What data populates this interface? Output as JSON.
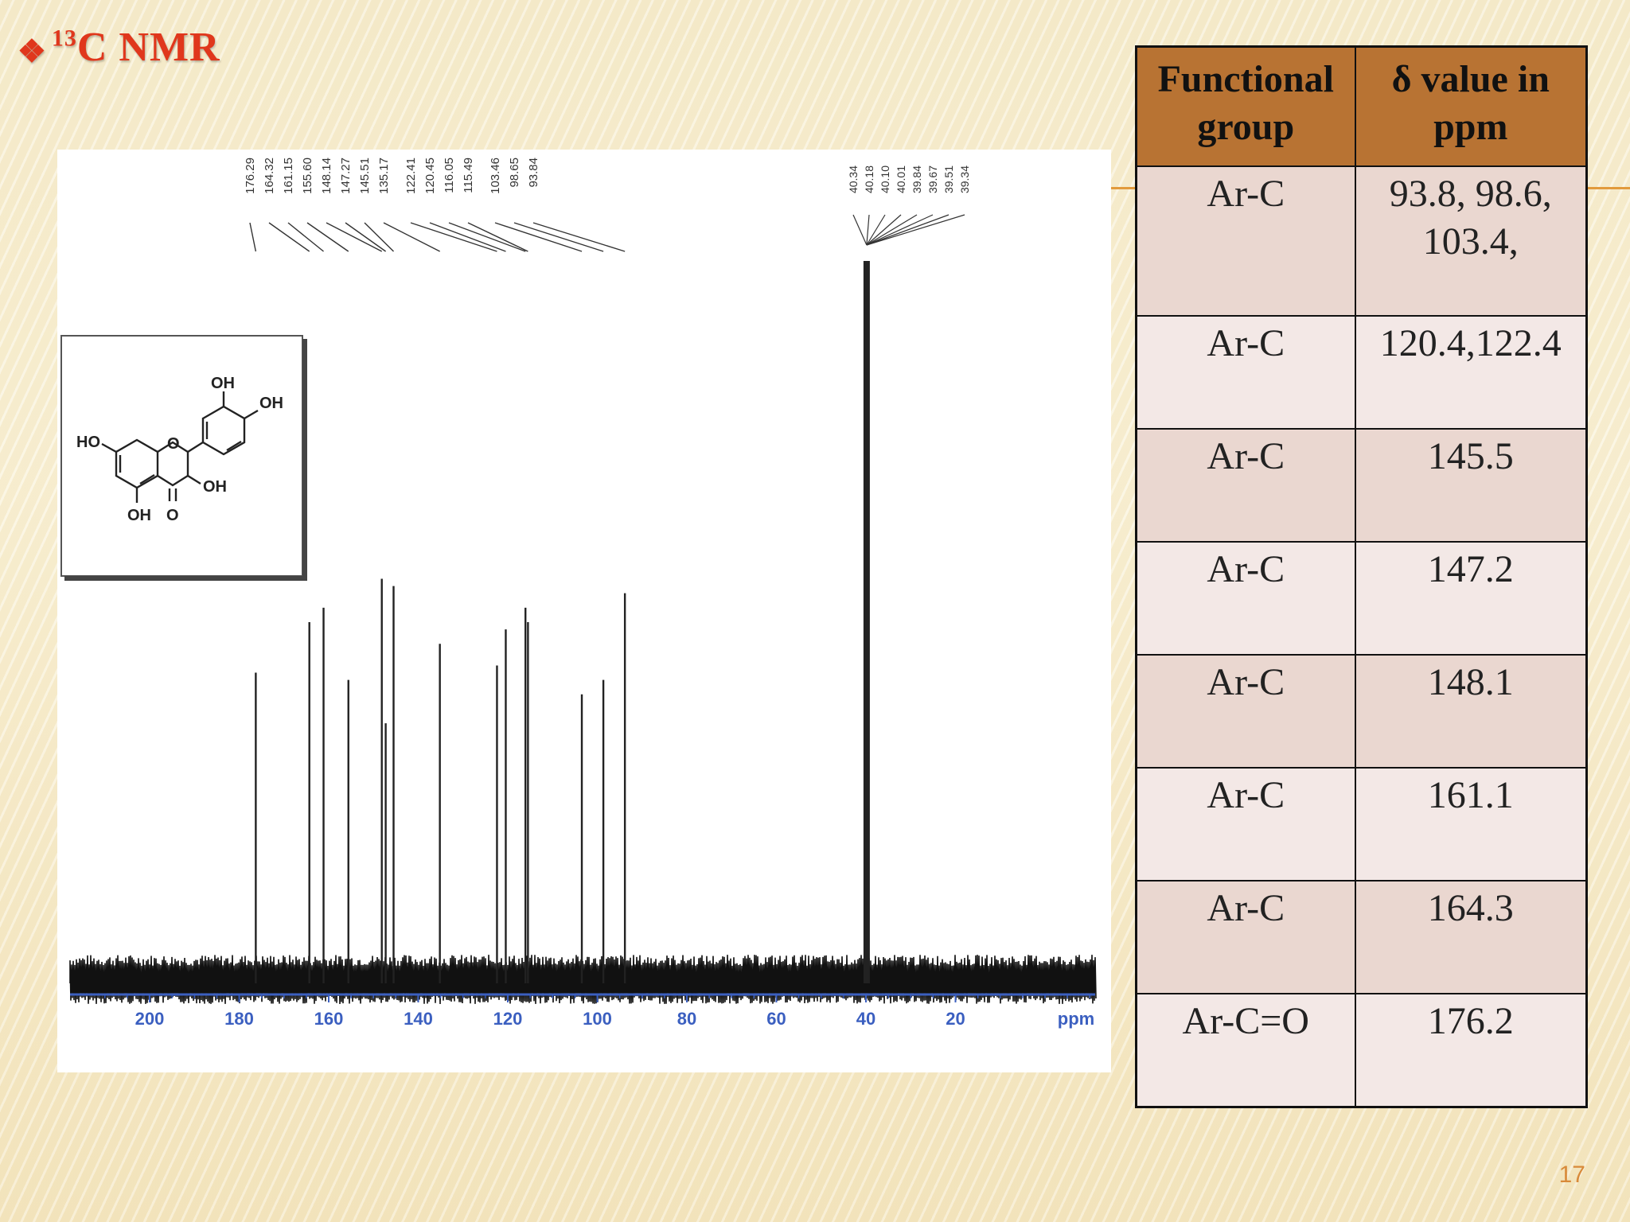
{
  "slide": {
    "title_bullet": "❖",
    "title_sup": "13",
    "title_text": "C NMR",
    "page_number": "17",
    "accent_color": "#e0371c"
  },
  "table": {
    "headers": [
      "Functional group",
      "δ value in ppm"
    ],
    "rows": [
      {
        "group": "Ar-C",
        "value": "93.8, 98.6, 103.4,"
      },
      {
        "group": "Ar-C",
        "value": "120.4,122.4"
      },
      {
        "group": "Ar-C",
        "value": "145.5"
      },
      {
        "group": "Ar-C",
        "value": "147.2"
      },
      {
        "group": "Ar-C",
        "value": "148.1"
      },
      {
        "group": "Ar-C",
        "value": "161.1"
      },
      {
        "group": "Ar-C",
        "value": "164.3"
      },
      {
        "group": "Ar-C=O",
        "value": "176.2"
      }
    ]
  },
  "molecule": {
    "labels": [
      "OH",
      "OH",
      "HO",
      "O",
      "OH",
      "OH",
      "O"
    ]
  },
  "chart_data": {
    "type": "line",
    "xlabel": "ppm",
    "xlim": [
      215,
      -15
    ],
    "x_reversed": true,
    "ticks": [
      200,
      180,
      160,
      140,
      120,
      100,
      80,
      60,
      40,
      20
    ],
    "peak_labels": [
      "176.29",
      "164.32",
      "161.15",
      "155.60",
      "148.14",
      "147.27",
      "145.51",
      "135.17",
      "122.41",
      "120.45",
      "116.05",
      "115.49",
      "103.46",
      "98.65",
      "93.84"
    ],
    "solvent_labels": [
      "40.34",
      "40.18",
      "40.10",
      "40.01",
      "39.84",
      "39.67",
      "39.51",
      "39.34"
    ],
    "peaks": [
      {
        "x": 176.29,
        "y": 0.43
      },
      {
        "x": 164.32,
        "y": 0.5
      },
      {
        "x": 161.15,
        "y": 0.52
      },
      {
        "x": 155.6,
        "y": 0.42
      },
      {
        "x": 148.14,
        "y": 0.56
      },
      {
        "x": 147.27,
        "y": 0.36
      },
      {
        "x": 145.51,
        "y": 0.55
      },
      {
        "x": 135.17,
        "y": 0.47
      },
      {
        "x": 122.41,
        "y": 0.44
      },
      {
        "x": 120.45,
        "y": 0.49
      },
      {
        "x": 116.05,
        "y": 0.52
      },
      {
        "x": 115.49,
        "y": 0.5
      },
      {
        "x": 103.46,
        "y": 0.4
      },
      {
        "x": 98.65,
        "y": 0.42
      },
      {
        "x": 93.84,
        "y": 0.54
      },
      {
        "x": 39.84,
        "y": 1.0
      }
    ]
  }
}
